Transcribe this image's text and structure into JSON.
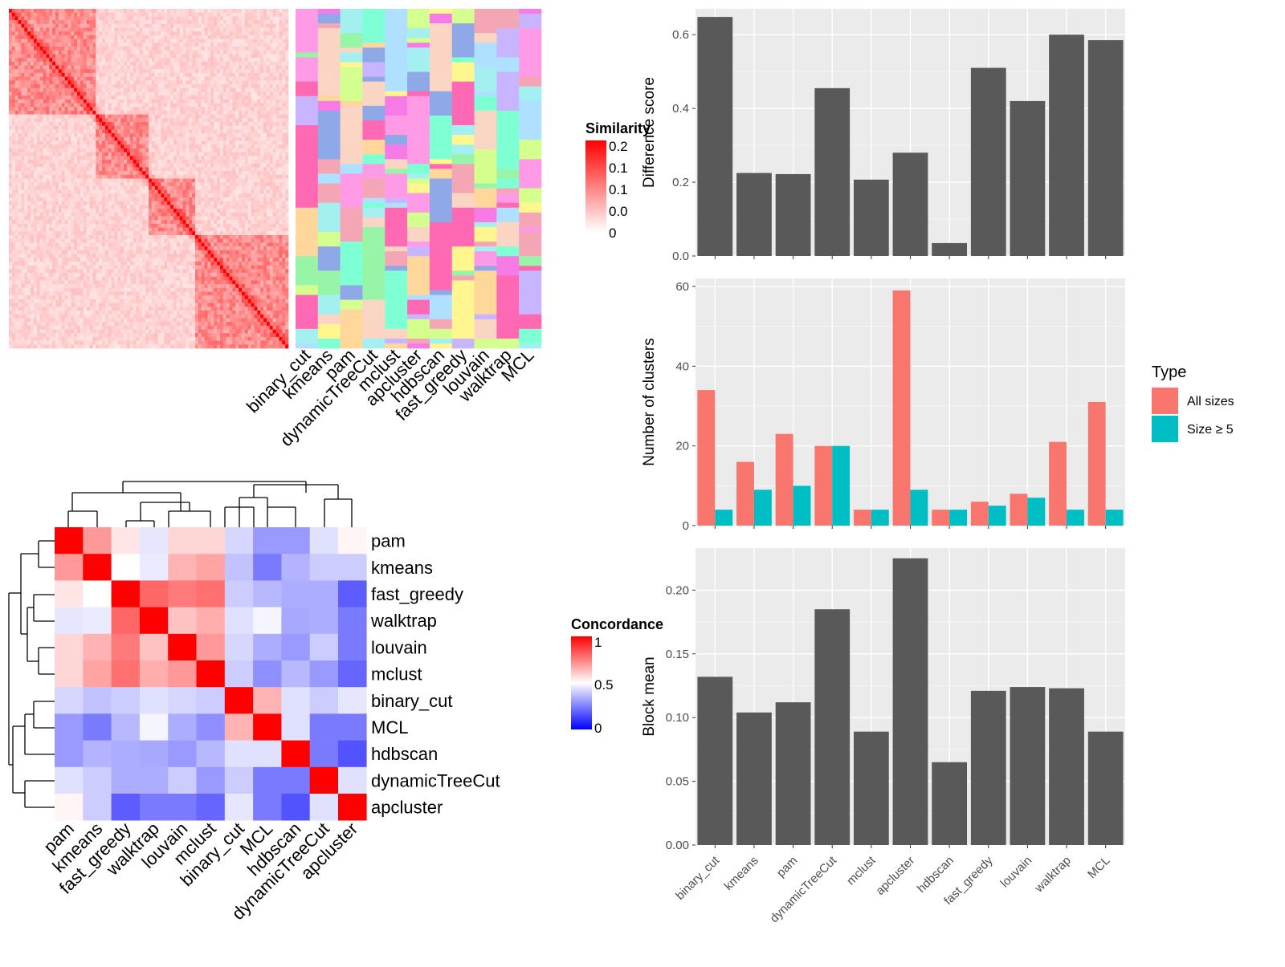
{
  "chart_data": [
    {
      "type": "heatmap",
      "title": "",
      "legend_title": "Similarity",
      "legend_ticks": [
        "0.2",
        "0.1",
        "0.1",
        "0.0",
        "0"
      ],
      "xlabel": "",
      "ylabel": "",
      "grid": false
    },
    {
      "type": "heatmap",
      "categories": [
        "binary_cut",
        "kmeans",
        "pam",
        "dynamicTreeCut",
        "mclust",
        "apcluster",
        "hdbscan",
        "fast_greedy",
        "louvain",
        "walktrap",
        "MCL"
      ],
      "title": "",
      "xlabel": "",
      "ylabel": ""
    },
    {
      "type": "heatmap",
      "rows": [
        "pam",
        "kmeans",
        "fast_greedy",
        "walktrap",
        "louvain",
        "mclust",
        "binary_cut",
        "MCL",
        "hdbscan",
        "dynamicTreeCut",
        "apcluster"
      ],
      "cols": [
        "pam",
        "kmeans",
        "fast_greedy",
        "walktrap",
        "louvain",
        "mclust",
        "binary_cut",
        "MCL",
        "hdbscan",
        "dynamicTreeCut",
        "apcluster"
      ],
      "values": [
        [
          1.0,
          0.7,
          0.55,
          0.45,
          0.58,
          0.58,
          0.42,
          0.3,
          0.3,
          0.44,
          0.52
        ],
        [
          0.7,
          1.0,
          0.5,
          0.46,
          0.65,
          0.68,
          0.38,
          0.24,
          0.35,
          0.4,
          0.4
        ],
        [
          0.55,
          0.5,
          1.0,
          0.8,
          0.76,
          0.78,
          0.4,
          0.36,
          0.34,
          0.34,
          0.18
        ],
        [
          0.45,
          0.46,
          0.8,
          1.0,
          0.62,
          0.66,
          0.44,
          0.48,
          0.33,
          0.34,
          0.24
        ],
        [
          0.58,
          0.65,
          0.76,
          0.62,
          1.0,
          0.7,
          0.42,
          0.34,
          0.3,
          0.4,
          0.24
        ],
        [
          0.58,
          0.68,
          0.78,
          0.66,
          0.7,
          1.0,
          0.4,
          0.28,
          0.36,
          0.3,
          0.2
        ],
        [
          0.42,
          0.38,
          0.4,
          0.44,
          0.42,
          0.4,
          1.0,
          0.65,
          0.44,
          0.4,
          0.45
        ],
        [
          0.3,
          0.24,
          0.36,
          0.48,
          0.34,
          0.28,
          0.65,
          1.0,
          0.44,
          0.24,
          0.24
        ],
        [
          0.3,
          0.35,
          0.34,
          0.33,
          0.3,
          0.36,
          0.44,
          0.44,
          1.0,
          0.24,
          0.16
        ],
        [
          0.44,
          0.4,
          0.34,
          0.34,
          0.4,
          0.3,
          0.4,
          0.24,
          0.24,
          1.0,
          0.44
        ],
        [
          0.52,
          0.4,
          0.18,
          0.24,
          0.24,
          0.2,
          0.45,
          0.24,
          0.16,
          0.44,
          1.0
        ]
      ],
      "legend_title": "Concordance",
      "legend_ticks": [
        "1",
        "0.5",
        "0"
      ],
      "colors": {
        "low": "#0000ff",
        "mid": "#ffffff",
        "high": "#ff0000"
      },
      "title": "",
      "xlabel": "",
      "ylabel": ""
    },
    {
      "type": "bar",
      "categories": [
        "binary_cut",
        "kmeans",
        "pam",
        "dynamicTreeCut",
        "mclust",
        "apcluster",
        "hdbscan",
        "fast_greedy",
        "louvain",
        "walktrap",
        "MCL"
      ],
      "values": [
        0.648,
        0.225,
        0.222,
        0.455,
        0.207,
        0.28,
        0.035,
        0.51,
        0.42,
        0.6,
        0.585
      ],
      "ylabel": "Difference score",
      "xlabel": "",
      "title": "",
      "ylim": [
        0,
        0.67
      ],
      "yticks": [
        "0.0",
        "0.2",
        "0.4",
        "0.6"
      ],
      "grid": true
    },
    {
      "type": "bar",
      "categories": [
        "binary_cut",
        "kmeans",
        "pam",
        "dynamicTreeCut",
        "mclust",
        "apcluster",
        "hdbscan",
        "fast_greedy",
        "louvain",
        "walktrap",
        "MCL"
      ],
      "series": [
        {
          "name": "All sizes",
          "values": [
            34,
            16,
            23,
            20,
            4,
            59,
            4,
            6,
            8,
            21,
            31
          ],
          "color": "#F8766D"
        },
        {
          "name": "Size ≥ 5",
          "values": [
            4,
            9,
            10,
            20,
            4,
            9,
            4,
            5,
            7,
            4,
            4
          ],
          "color": "#00BFC4"
        }
      ],
      "ylabel": "Number of clusters",
      "xlabel": "",
      "title": "",
      "ylim": [
        0,
        62
      ],
      "yticks": [
        "0",
        "20",
        "40",
        "60"
      ],
      "legend_title": "Type",
      "legend_position": "right",
      "grid": true
    },
    {
      "type": "bar",
      "categories": [
        "binary_cut",
        "kmeans",
        "pam",
        "dynamicTreeCut",
        "mclust",
        "apcluster",
        "hdbscan",
        "fast_greedy",
        "louvain",
        "walktrap",
        "MCL"
      ],
      "values": [
        0.132,
        0.104,
        0.112,
        0.185,
        0.089,
        0.225,
        0.065,
        0.121,
        0.124,
        0.123,
        0.089
      ],
      "ylabel": "Block mean",
      "xlabel": "",
      "title": "",
      "ylim": [
        0,
        0.233
      ],
      "yticks": [
        "0.00",
        "0.05",
        "0.10",
        "0.15",
        "0.20"
      ],
      "grid": true
    }
  ]
}
